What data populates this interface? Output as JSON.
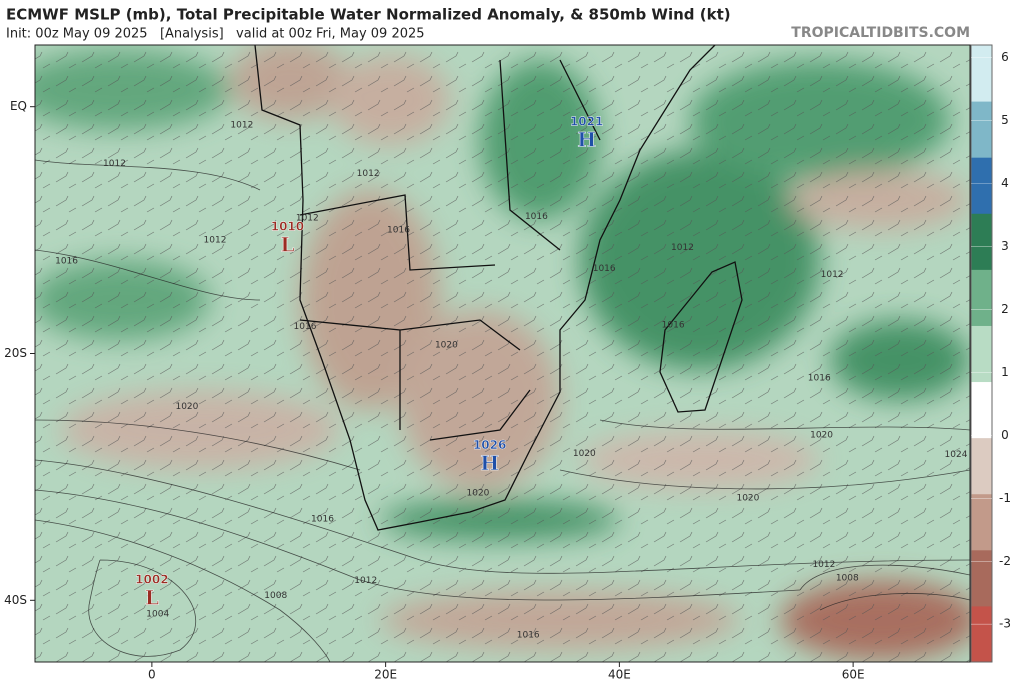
{
  "title": "ECMWF MSLP (mb), Total Precipitable Water Normalized Anomaly, & 850mb Wind (kt)",
  "subtitle": "Init: 00z May 09 2025   [Analysis]   valid at 00z Fri, May 09 2025",
  "source": "TROPICALTIDBITS.COM",
  "map": {
    "lonlim": [
      -10,
      70
    ],
    "latlim": [
      5,
      -45
    ],
    "xticks": [
      0,
      {
        "value": 20,
        "label": "20E"
      },
      {
        "value": 40,
        "label": "40E"
      },
      {
        "value": 60,
        "label": "60E"
      }
    ],
    "yticks": [
      {
        "value": 0,
        "label": "EQ"
      },
      {
        "value": -20,
        "label": "20S"
      },
      {
        "value": -40,
        "label": "40S"
      }
    ],
    "centers": [
      {
        "value": 1010,
        "letter": "L",
        "lon": 11.6,
        "lat": -10.8,
        "color": "#9b2c22"
      },
      {
        "value": 1021,
        "letter": "H",
        "lon": 37.2,
        "lat": -2.3,
        "color": "#1f4fa8"
      },
      {
        "value": 1026,
        "letter": "H",
        "lon": 28.9,
        "lat": -28.5,
        "color": "#1f4fa8"
      },
      {
        "value": 1002,
        "letter": "L",
        "lon": 0,
        "lat": -39.4,
        "color": "#9b2c22"
      }
    ],
    "isobar_labels": [
      {
        "value": 1012,
        "lon": 7.7,
        "lat": -1.5
      },
      {
        "value": 1012,
        "lon": -3.2,
        "lat": -4.6
      },
      {
        "value": 1012,
        "lon": 5.4,
        "lat": -10.8
      },
      {
        "value": 1012,
        "lon": 13.3,
        "lat": -9
      },
      {
        "value": 1012,
        "lon": 18.5,
        "lat": -5.4
      },
      {
        "value": 1012,
        "lon": 45.4,
        "lat": -11.4
      },
      {
        "value": 1012,
        "lon": 58.2,
        "lat": -13.6
      },
      {
        "value": 1016,
        "lon": -7.3,
        "lat": -12.5
      },
      {
        "value": 1016,
        "lon": 13.1,
        "lat": -17.8
      },
      {
        "value": 1016,
        "lon": 21.1,
        "lat": -10
      },
      {
        "value": 1016,
        "lon": 32.9,
        "lat": -8.9
      },
      {
        "value": 1016,
        "lon": 38.7,
        "lat": -13.1
      },
      {
        "value": 1016,
        "lon": 44.6,
        "lat": -17.7
      },
      {
        "value": 1016,
        "lon": 57.1,
        "lat": -22
      },
      {
        "value": 1016,
        "lon": 14.6,
        "lat": -33.4
      },
      {
        "value": 1016,
        "lon": 32.2,
        "lat": -42.8
      },
      {
        "value": 1020,
        "lon": 3,
        "lat": -24.3
      },
      {
        "value": 1020,
        "lon": 25.2,
        "lat": -19.3
      },
      {
        "value": 1020,
        "lon": 37,
        "lat": -28.1
      },
      {
        "value": 1020,
        "lon": 57.3,
        "lat": -26.6
      },
      {
        "value": 1020,
        "lon": 51,
        "lat": -31.7
      },
      {
        "value": 1020,
        "lon": 27.9,
        "lat": -31.3
      },
      {
        "value": 1024,
        "lon": 68.8,
        "lat": -28.2
      },
      {
        "value": 1012,
        "lon": 18.3,
        "lat": -38.4
      },
      {
        "value": 1012,
        "lon": 57.5,
        "lat": -37.1
      },
      {
        "value": 1008,
        "lon": 59.5,
        "lat": -38.2
      },
      {
        "value": 1008,
        "lon": 10.6,
        "lat": -39.6
      },
      {
        "value": 1004,
        "lon": 0.5,
        "lat": -41.1
      }
    ]
  },
  "colorbar": {
    "lim": [
      -3.6,
      6.2
    ],
    "ticks": [
      6,
      5,
      4,
      3,
      2,
      1,
      0,
      -1,
      -2,
      -3
    ],
    "colors": [
      "#c4534a",
      "#a86a5c",
      "#c29a8a",
      "#dccbc1",
      "#ffffff",
      "#b8dcc4",
      "#6fb18a",
      "#2d7d55",
      "#2f6fae",
      "#7fb7c8",
      "#d2ecf0"
    ]
  }
}
